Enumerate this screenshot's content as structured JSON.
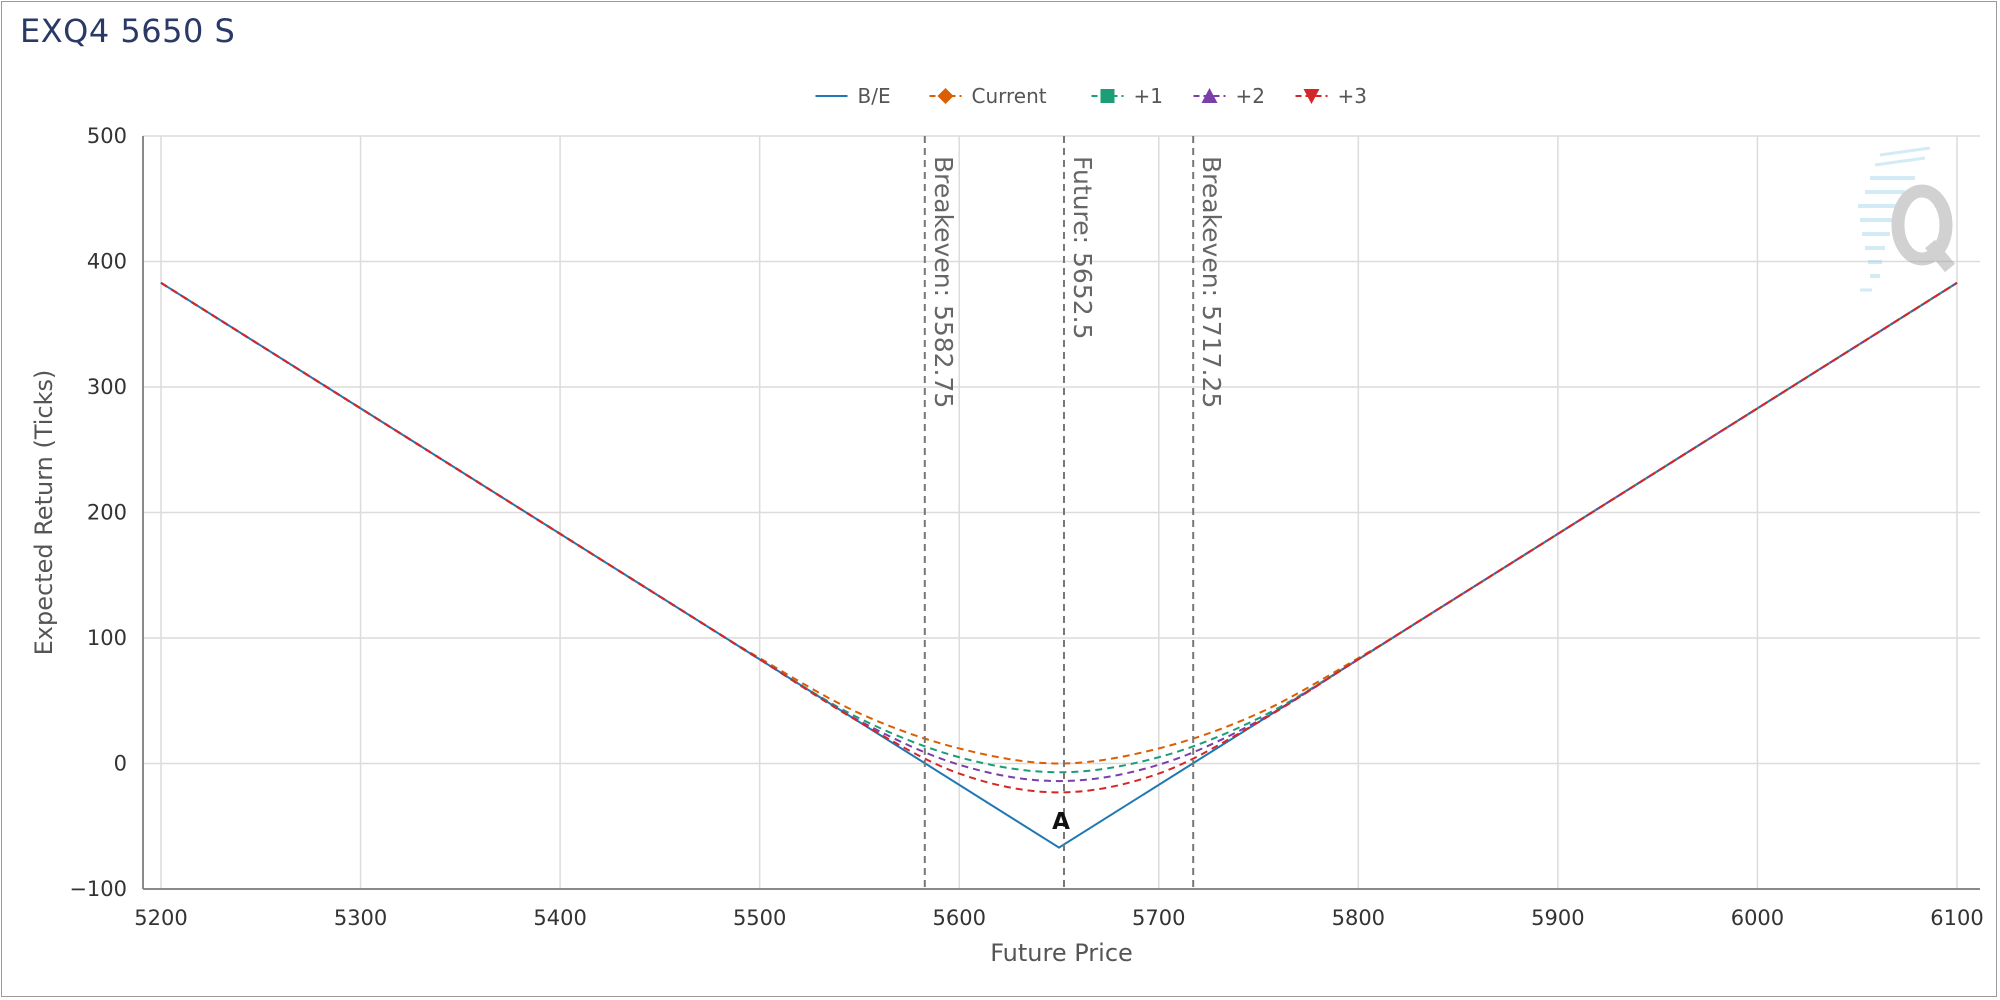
{
  "title": "EXQ4 5650 S",
  "chart_data": {
    "type": "line",
    "title": "EXQ4 5650 S",
    "xlabel": "Future Price",
    "ylabel": "Expected Return (Ticks)",
    "xlim": [
      5200,
      6100
    ],
    "ylim": [
      -100,
      500
    ],
    "x_ticks": [
      5200,
      5300,
      5400,
      5500,
      5600,
      5700,
      5800,
      5900,
      6000,
      6100
    ],
    "y_ticks": [
      -100,
      0,
      100,
      200,
      300,
      400,
      500
    ],
    "x_tick_labels": [
      "5200",
      "5300",
      "5400",
      "5500",
      "5600",
      "5700",
      "5800",
      "5900",
      "6000",
      "6100"
    ],
    "y_tick_labels": [
      "−100",
      "0",
      "100",
      "200",
      "300",
      "400",
      "500"
    ],
    "grid": true,
    "legend_position": "top-center",
    "series": [
      {
        "name": "B/E",
        "color": "#1f77b4",
        "dash": "solid",
        "marker": "none",
        "points": [
          [
            5200,
            383
          ],
          [
            5650,
            -67
          ],
          [
            6100,
            383
          ]
        ]
      },
      {
        "name": "Current",
        "color": "#d95f02",
        "dash": "dashed",
        "marker": "diamond",
        "points": [
          [
            5200,
            383
          ],
          [
            5450,
            133
          ],
          [
            5500,
            84
          ],
          [
            5550,
            40
          ],
          [
            5600,
            12
          ],
          [
            5650,
            0
          ],
          [
            5700,
            12
          ],
          [
            5750,
            40
          ],
          [
            5800,
            84
          ],
          [
            5850,
            133
          ],
          [
            6100,
            383
          ]
        ]
      },
      {
        "name": "+1",
        "color": "#1b9e77",
        "dash": "dashed",
        "marker": "square",
        "points": [
          [
            5200,
            383
          ],
          [
            5450,
            133
          ],
          [
            5500,
            83
          ],
          [
            5550,
            36
          ],
          [
            5600,
            5
          ],
          [
            5650,
            -7
          ],
          [
            5700,
            5
          ],
          [
            5750,
            36
          ],
          [
            5800,
            83
          ],
          [
            5850,
            133
          ],
          [
            6100,
            383
          ]
        ]
      },
      {
        "name": "+2",
        "color": "#7b3fa8",
        "dash": "dashed",
        "marker": "triangle-up",
        "points": [
          [
            5200,
            383
          ],
          [
            5450,
            133
          ],
          [
            5500,
            83
          ],
          [
            5550,
            34
          ],
          [
            5600,
            -1
          ],
          [
            5650,
            -14
          ],
          [
            5700,
            -1
          ],
          [
            5750,
            34
          ],
          [
            5800,
            83
          ],
          [
            5850,
            133
          ],
          [
            6100,
            383
          ]
        ]
      },
      {
        "name": "+3",
        "color": "#d62728",
        "dash": "dashed",
        "marker": "triangle-down",
        "points": [
          [
            5200,
            383
          ],
          [
            5450,
            133
          ],
          [
            5500,
            83
          ],
          [
            5550,
            33
          ],
          [
            5600,
            -8
          ],
          [
            5650,
            -23
          ],
          [
            5700,
            -8
          ],
          [
            5750,
            33
          ],
          [
            5800,
            83
          ],
          [
            5850,
            133
          ],
          [
            6100,
            383
          ]
        ]
      }
    ],
    "vertical_lines": [
      {
        "x": 5582.75,
        "label": "Breakeven: 5582.75"
      },
      {
        "x": 5652.5,
        "label": "Future: 5652.5"
      },
      {
        "x": 5717.25,
        "label": "Breakeven: 5717.25"
      }
    ],
    "annotations": [
      {
        "x": 5650,
        "y": -46,
        "text": "A"
      }
    ]
  }
}
